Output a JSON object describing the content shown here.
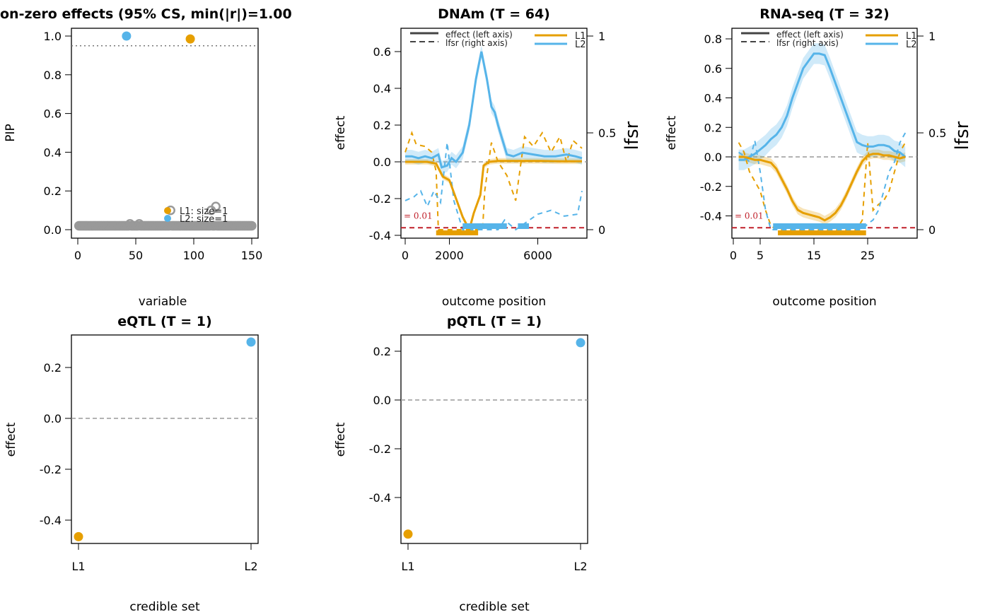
{
  "colors": {
    "L1": "#E69F00",
    "L2": "#56B4E9",
    "grey": "#999999",
    "threshold": "#C0202A"
  },
  "chart_data": [
    {
      "type": "scatter",
      "title": "on-zero effects (95% CS, min(|r|)=1.00",
      "xlabel": "variable",
      "ylabel": "PIP",
      "xlim": [
        0,
        150
      ],
      "ylim": [
        0,
        1
      ],
      "xticks": [
        0,
        50,
        100,
        150
      ],
      "yticks": [
        "0.0",
        "0.2",
        "0.4",
        "0.6",
        "0.8",
        "1.0"
      ],
      "threshold": 0.95,
      "pip": [
        0.02,
        0.02,
        0.02,
        0.02,
        0.02,
        0.02,
        0.02,
        0.02,
        0.02,
        0.02,
        0.02,
        0.02,
        0.02,
        0.02,
        0.02,
        0.02,
        0.02,
        0.02,
        0.02,
        0.02,
        0.02,
        0.02,
        0.02,
        0.02,
        0.02,
        0.02,
        0.02,
        0.02,
        0.02,
        0.02,
        0.02,
        0.02,
        0.02,
        0.02,
        0.02,
        0.02,
        0.02,
        0.02,
        0.02,
        0.02,
        0.02,
        0.02,
        0.02,
        0.02,
        0.03,
        0.02,
        0.02,
        0.02,
        0.02,
        0.02,
        0.02,
        0.02,
        0.03,
        0.02,
        0.02,
        0.02,
        0.02,
        0.02,
        0.02,
        0.02,
        0.02,
        0.02,
        0.02,
        0.02,
        0.02,
        0.02,
        0.02,
        0.02,
        0.02,
        0.02,
        0.02,
        0.02,
        0.02,
        0.02,
        0.02,
        0.02,
        0.02,
        0.02,
        0.02,
        0.1,
        0.02,
        0.02,
        0.02,
        0.02,
        0.02,
        0.02,
        0.02,
        0.02,
        0.02,
        0.02,
        0.02,
        0.02,
        0.02,
        0.02,
        0.02,
        0.02,
        0.02,
        0.02,
        0.02,
        0.02,
        0.02,
        0.02,
        0.02,
        0.02,
        0.02,
        0.02,
        0.02,
        0.02,
        0.02,
        0.02,
        0.02,
        0.02,
        0.02,
        0.02,
        0.1,
        0.02,
        0.02,
        0.02,
        0.12,
        0.02,
        0.02,
        0.02,
        0.02,
        0.02,
        0.02,
        0.02,
        0.02,
        0.02,
        0.02,
        0.02,
        0.02,
        0.02,
        0.02,
        0.02,
        0.02,
        0.02,
        0.02,
        0.02,
        0.02,
        0.02,
        0.02,
        0.02,
        0.02,
        0.02,
        0.02,
        0.02,
        0.02,
        0.02,
        0.02,
        0.02
      ],
      "highlighted": [
        {
          "cs": "L1",
          "x": 97,
          "pip": 0.985
        },
        {
          "cs": "L2",
          "x": 42,
          "pip": 1.0
        }
      ],
      "legend": [
        "L1: size=1",
        "L2: size=1"
      ]
    },
    {
      "type": "line",
      "title": "DNAm (T = 64)",
      "xlabel": "outcome position",
      "ylabel": "effect",
      "ylabel_right": "lfsr",
      "xlim": [
        0,
        8000
      ],
      "ylim": [
        -0.4,
        0.7
      ],
      "ylim_right": [
        0,
        1
      ],
      "xticks": [
        "0",
        "2000",
        "6000"
      ],
      "xtick_values": [
        0,
        2000,
        6000
      ],
      "yticks": [
        "-0.4",
        "-0.2",
        "0.0",
        "0.2",
        "0.4",
        "0.6"
      ],
      "yticks_right": [
        "0",
        "0.5",
        "1"
      ],
      "threshold_label": "= 0.01",
      "threshold": 0.01,
      "legend": {
        "effect": "effect (left axis)",
        "lfsr": "lfsr (right axis)",
        "L1": "L1",
        "L2": "L2"
      },
      "effect": {
        "L1": [
          [
            0,
            0
          ],
          [
            500,
            0
          ],
          [
            1000,
            0
          ],
          [
            1400,
            -0.01
          ],
          [
            1700,
            -0.08
          ],
          [
            2000,
            -0.1
          ],
          [
            2300,
            -0.2
          ],
          [
            2600,
            -0.3
          ],
          [
            2900,
            -0.37
          ],
          [
            3100,
            -0.28
          ],
          [
            3400,
            -0.18
          ],
          [
            3550,
            -0.02
          ],
          [
            3800,
            0
          ],
          [
            4200,
            0.005
          ],
          [
            5000,
            0.005
          ],
          [
            6000,
            0.005
          ],
          [
            7000,
            0.003
          ],
          [
            8000,
            0.003
          ]
        ],
        "L2": [
          [
            0,
            0.03
          ],
          [
            300,
            0.03
          ],
          [
            600,
            0.02
          ],
          [
            900,
            0.03
          ],
          [
            1200,
            0.02
          ],
          [
            1500,
            0.04
          ],
          [
            1650,
            -0.03
          ],
          [
            1900,
            -0.02
          ],
          [
            2100,
            0.02
          ],
          [
            2300,
            0.0
          ],
          [
            2600,
            0.05
          ],
          [
            2900,
            0.2
          ],
          [
            3200,
            0.45
          ],
          [
            3450,
            0.6
          ],
          [
            3700,
            0.45
          ],
          [
            3900,
            0.3
          ],
          [
            4050,
            0.27
          ],
          [
            4200,
            0.2
          ],
          [
            4400,
            0.12
          ],
          [
            4600,
            0.04
          ],
          [
            4900,
            0.03
          ],
          [
            5300,
            0.05
          ],
          [
            5800,
            0.04
          ],
          [
            6300,
            0.03
          ],
          [
            6800,
            0.03
          ],
          [
            7300,
            0.04
          ],
          [
            7700,
            0.03
          ],
          [
            8000,
            0.02
          ]
        ]
      },
      "band": {
        "L1": 0.015,
        "L2": 0.035
      },
      "lfsr": {
        "L1": [
          [
            0,
            0.4
          ],
          [
            300,
            0.5
          ],
          [
            500,
            0.44
          ],
          [
            900,
            0.43
          ],
          [
            1200,
            0.4
          ],
          [
            1400,
            0.3
          ],
          [
            1500,
            0.0
          ],
          [
            2000,
            0.0
          ],
          [
            3500,
            0.0
          ],
          [
            3600,
            0.2
          ],
          [
            3900,
            0.45
          ],
          [
            4200,
            0.35
          ],
          [
            4600,
            0.28
          ],
          [
            5000,
            0.15
          ],
          [
            5400,
            0.48
          ],
          [
            5800,
            0.43
          ],
          [
            6200,
            0.5
          ],
          [
            6600,
            0.4
          ],
          [
            7000,
            0.48
          ],
          [
            7300,
            0.35
          ],
          [
            7600,
            0.46
          ],
          [
            8000,
            0.42
          ]
        ],
        "L2": [
          [
            0,
            0.15
          ],
          [
            400,
            0.17
          ],
          [
            700,
            0.2
          ],
          [
            1000,
            0.12
          ],
          [
            1300,
            0.2
          ],
          [
            1600,
            0.14
          ],
          [
            1900,
            0.45
          ],
          [
            2200,
            0.15
          ],
          [
            2600,
            0.0
          ],
          [
            3500,
            0.0
          ],
          [
            4200,
            0.0
          ],
          [
            4500,
            0.05
          ],
          [
            5000,
            0.0
          ],
          [
            5500,
            0.04
          ],
          [
            6000,
            0.08
          ],
          [
            6600,
            0.1
          ],
          [
            7200,
            0.07
          ],
          [
            7800,
            0.08
          ],
          [
            8000,
            0.2
          ]
        ]
      },
      "sig": {
        "L1": [
          [
            1400,
            3300
          ]
        ],
        "L2": [
          [
            2600,
            4600
          ],
          [
            5100,
            5600
          ]
        ]
      }
    },
    {
      "type": "line",
      "title": "RNA-seq (T = 32)",
      "xlabel": "outcome position",
      "ylabel": "effect",
      "ylabel_right": "lfsr",
      "xlim": [
        0,
        34
      ],
      "ylim": [
        -0.5,
        0.85
      ],
      "ylim_right": [
        0,
        1
      ],
      "xticks": [
        "0",
        "5",
        "15",
        "25"
      ],
      "xtick_values": [
        0,
        5,
        15,
        25
      ],
      "yticks": [
        "-0.4",
        "-0.2",
        "0.0",
        "0.2",
        "0.4",
        "0.6",
        "0.8"
      ],
      "yticks_right": [
        "0",
        "0.5",
        "1"
      ],
      "threshold_label": "= 0.01",
      "threshold": 0.01,
      "legend": {
        "effect": "effect (left axis)",
        "lfsr": "lfsr (right axis)",
        "L1": "L1",
        "L2": "L2"
      },
      "effect": {
        "L1": [
          [
            1,
            0
          ],
          [
            2,
            0
          ],
          [
            3,
            -0.01
          ],
          [
            4,
            -0.02
          ],
          [
            5,
            -0.02
          ],
          [
            6,
            -0.03
          ],
          [
            7,
            -0.04
          ],
          [
            8,
            -0.08
          ],
          [
            9,
            -0.15
          ],
          [
            10,
            -0.22
          ],
          [
            11,
            -0.3
          ],
          [
            12,
            -0.36
          ],
          [
            13,
            -0.38
          ],
          [
            14,
            -0.39
          ],
          [
            15,
            -0.4
          ],
          [
            16,
            -0.41
          ],
          [
            17,
            -0.43
          ],
          [
            18,
            -0.41
          ],
          [
            19,
            -0.38
          ],
          [
            20,
            -0.33
          ],
          [
            21,
            -0.26
          ],
          [
            22,
            -0.18
          ],
          [
            23,
            -0.1
          ],
          [
            24,
            -0.03
          ],
          [
            25,
            0.01
          ],
          [
            26,
            0.02
          ],
          [
            27,
            0.02
          ],
          [
            28,
            0.01
          ],
          [
            29,
            0.01
          ],
          [
            30,
            0.0
          ],
          [
            31,
            -0.01
          ],
          [
            32,
            0.0
          ]
        ],
        "L2": [
          [
            1,
            -0.02
          ],
          [
            2,
            -0.02
          ],
          [
            3,
            0.0
          ],
          [
            4,
            0.02
          ],
          [
            5,
            0.05
          ],
          [
            6,
            0.08
          ],
          [
            7,
            0.12
          ],
          [
            8,
            0.15
          ],
          [
            9,
            0.2
          ],
          [
            10,
            0.28
          ],
          [
            11,
            0.4
          ],
          [
            12,
            0.5
          ],
          [
            13,
            0.6
          ],
          [
            14,
            0.65
          ],
          [
            15,
            0.7
          ],
          [
            16,
            0.7
          ],
          [
            17,
            0.69
          ],
          [
            18,
            0.6
          ],
          [
            19,
            0.5
          ],
          [
            20,
            0.4
          ],
          [
            21,
            0.3
          ],
          [
            22,
            0.2
          ],
          [
            23,
            0.1
          ],
          [
            24,
            0.08
          ],
          [
            25,
            0.07
          ],
          [
            26,
            0.07
          ],
          [
            27,
            0.08
          ],
          [
            28,
            0.08
          ],
          [
            29,
            0.07
          ],
          [
            30,
            0.04
          ],
          [
            31,
            0.03
          ],
          [
            32,
            0.0
          ]
        ]
      },
      "band": {
        "L1": 0.03,
        "L2": 0.07
      },
      "lfsr": {
        "L1": [
          [
            1,
            0.45
          ],
          [
            2,
            0.4
          ],
          [
            3,
            0.3
          ],
          [
            4,
            0.25
          ],
          [
            5,
            0.2
          ],
          [
            6,
            0.1
          ],
          [
            7,
            0.02
          ],
          [
            8,
            0
          ],
          [
            15,
            0
          ],
          [
            23,
            0
          ],
          [
            24,
            0.05
          ],
          [
            25,
            0.45
          ],
          [
            26,
            0.1
          ],
          [
            27,
            0.13
          ],
          [
            28,
            0.15
          ],
          [
            29,
            0.2
          ],
          [
            30,
            0.3
          ],
          [
            31,
            0.4
          ],
          [
            32,
            0.45
          ]
        ],
        "L2": [
          [
            1,
            0.4
          ],
          [
            2,
            0.38
          ],
          [
            3,
            0.35
          ],
          [
            4,
            0.46
          ],
          [
            5,
            0.3
          ],
          [
            6,
            0.1
          ],
          [
            7,
            0.0
          ],
          [
            15,
            0
          ],
          [
            23,
            0.0
          ],
          [
            24,
            0.0
          ],
          [
            25,
            0.03
          ],
          [
            26,
            0.05
          ],
          [
            27,
            0.1
          ],
          [
            28,
            0.2
          ],
          [
            29,
            0.3
          ],
          [
            30,
            0.35
          ],
          [
            31,
            0.45
          ],
          [
            32,
            0.5
          ]
        ]
      },
      "sig": {
        "L1": [
          [
            8.3,
            24.7
          ]
        ],
        "L2": [
          [
            7.4,
            24.7
          ]
        ]
      }
    },
    {
      "type": "scatter",
      "title": "eQTL (T = 1)",
      "xlabel": "credible set",
      "ylabel": "effect",
      "categories": [
        "L1",
        "L2"
      ],
      "values": [
        -0.465,
        0.3
      ],
      "ylim": [
        -0.49,
        0.33
      ],
      "yticks": [
        "-0.4",
        "-0.2",
        "0.0",
        "0.2"
      ]
    },
    {
      "type": "scatter",
      "title": "pQTL (T = 1)",
      "xlabel": "credible set",
      "ylabel": "effect",
      "categories": [
        "L1",
        "L2"
      ],
      "values": [
        -0.55,
        0.235
      ],
      "ylim": [
        -0.58,
        0.27
      ],
      "yticks": [
        "-0.4",
        "-0.2",
        "0.0",
        "0.2"
      ]
    }
  ]
}
